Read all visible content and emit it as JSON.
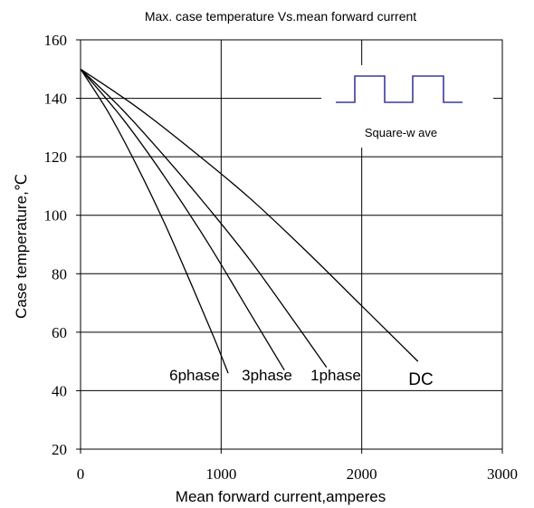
{
  "chart_data": {
    "type": "line",
    "title": "Max. case temperature  Vs.mean forward current",
    "xlabel": "Mean forward  current,amperes",
    "ylabel": "Case temperature,℃",
    "xlim": [
      0,
      3000
    ],
    "ylim": [
      20,
      160
    ],
    "x_ticks": [
      "0",
      "1000",
      "2000",
      "3000"
    ],
    "y_ticks": [
      "20",
      "40",
      "60",
      "80",
      "100",
      "120",
      "140",
      "160"
    ],
    "grid": true,
    "inset_label": "Square-w ave",
    "series": [
      {
        "name": "6phase",
        "x": [
          0,
          200,
          400,
          600,
          800,
          950,
          1050
        ],
        "y": [
          150,
          135,
          117,
          97,
          75,
          58,
          46
        ]
      },
      {
        "name": "3phase",
        "x": [
          0,
          300,
          600,
          900,
          1200,
          1450
        ],
        "y": [
          150,
          133,
          113,
          91,
          67,
          47
        ]
      },
      {
        "name": "1phase",
        "x": [
          0,
          300,
          600,
          900,
          1200,
          1500,
          1750
        ],
        "y": [
          150,
          136,
          120,
          103,
          85,
          65,
          48
        ]
      },
      {
        "name": "DC",
        "x": [
          0,
          400,
          800,
          1200,
          1600,
          2000,
          2400
        ],
        "y": [
          150,
          137,
          122,
          106,
          88,
          69,
          50
        ]
      }
    ]
  }
}
